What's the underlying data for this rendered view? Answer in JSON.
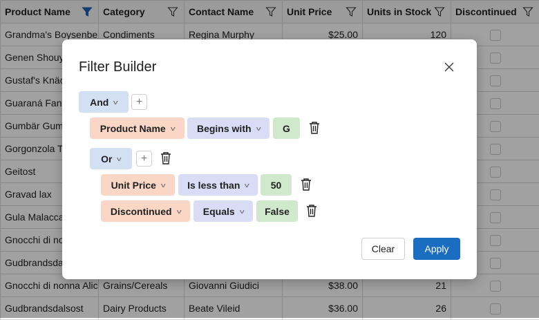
{
  "grid": {
    "columns": [
      {
        "label": "Product Name",
        "filtered": true
      },
      {
        "label": "Category",
        "filtered": false
      },
      {
        "label": "Contact Name",
        "filtered": false
      },
      {
        "label": "Unit Price",
        "filtered": false
      },
      {
        "label": "Units in Stock",
        "filtered": false
      },
      {
        "label": "Discontinued",
        "filtered": false
      }
    ],
    "rows": [
      [
        "Grandma's Boysenberry Spread",
        "Condiments",
        "Regina Murphy",
        "$25.00",
        "120"
      ],
      [
        "Genen Shouy",
        "",
        "",
        "",
        ""
      ],
      [
        "Gustaf's Knäc",
        "",
        "",
        "",
        ""
      ],
      [
        "Guaraná Fant",
        "",
        "",
        "",
        ""
      ],
      [
        "Gumbär Gum",
        "",
        "",
        "",
        ""
      ],
      [
        "Gorgonzola T",
        "",
        "",
        "",
        ""
      ],
      [
        "Geitost",
        "",
        "",
        "",
        ""
      ],
      [
        "Gravad lax",
        "",
        "",
        "",
        ""
      ],
      [
        "Gula Malacca",
        "",
        "",
        "",
        ""
      ],
      [
        "Gnocchi di no",
        "",
        "",
        "",
        ""
      ],
      [
        "Gudbrandsda",
        "",
        "",
        "",
        ""
      ],
      [
        "Gnocchi di nonna Alice",
        "Grains/Cereals",
        "Giovanni Giudici",
        "$38.00",
        "21"
      ],
      [
        "Gudbrandsdalsost",
        "Dairy Products",
        "Beate Vileid",
        "$36.00",
        "26"
      ]
    ],
    "filter_active_color": "#1a5fb4"
  },
  "dialog": {
    "title": "Filter Builder",
    "root_group": "And",
    "cond1": {
      "field": "Product Name",
      "operator": "Begins with",
      "value": "G"
    },
    "sub_group": "Or",
    "cond2": {
      "field": "Unit Price",
      "operator": "Is less than",
      "value": "50"
    },
    "cond3": {
      "field": "Discontinued",
      "operator": "Equals",
      "value": "False"
    },
    "clear_label": "Clear",
    "apply_label": "Apply",
    "colors": {
      "group": "#d3dff3",
      "field": "#f9d6c6",
      "operator": "#d9dcf5",
      "value": "#d0e8cc",
      "apply": "#1a6dc0"
    }
  }
}
